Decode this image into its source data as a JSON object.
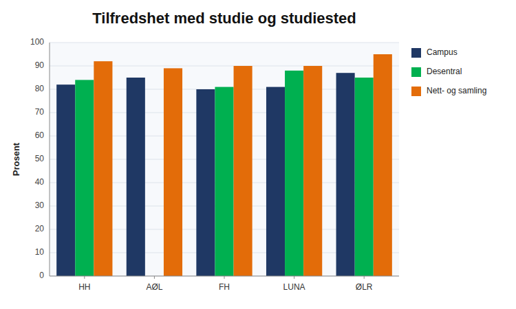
{
  "chart_data": {
    "type": "bar",
    "title": "Tilfredshet med studie og studiested",
    "ylabel": "Prosent",
    "categories": [
      "HH",
      "AØL",
      "FH",
      "LUNA",
      "ØLR"
    ],
    "series": [
      {
        "name": "Campus",
        "color": "#1f3864",
        "values": [
          82,
          85,
          80,
          81,
          87
        ]
      },
      {
        "name": "Desentral",
        "color": "#00b050",
        "values": [
          84,
          null,
          81,
          88,
          85
        ]
      },
      {
        "name": "Nett- og samling",
        "color": "#e36c09",
        "values": [
          92,
          89,
          90,
          90,
          95
        ]
      }
    ],
    "ylim": [
      0,
      100
    ],
    "yticks": [
      0,
      10,
      20,
      30,
      40,
      50,
      60,
      70,
      80,
      90,
      100
    ],
    "grid": true,
    "legend": "right"
  }
}
